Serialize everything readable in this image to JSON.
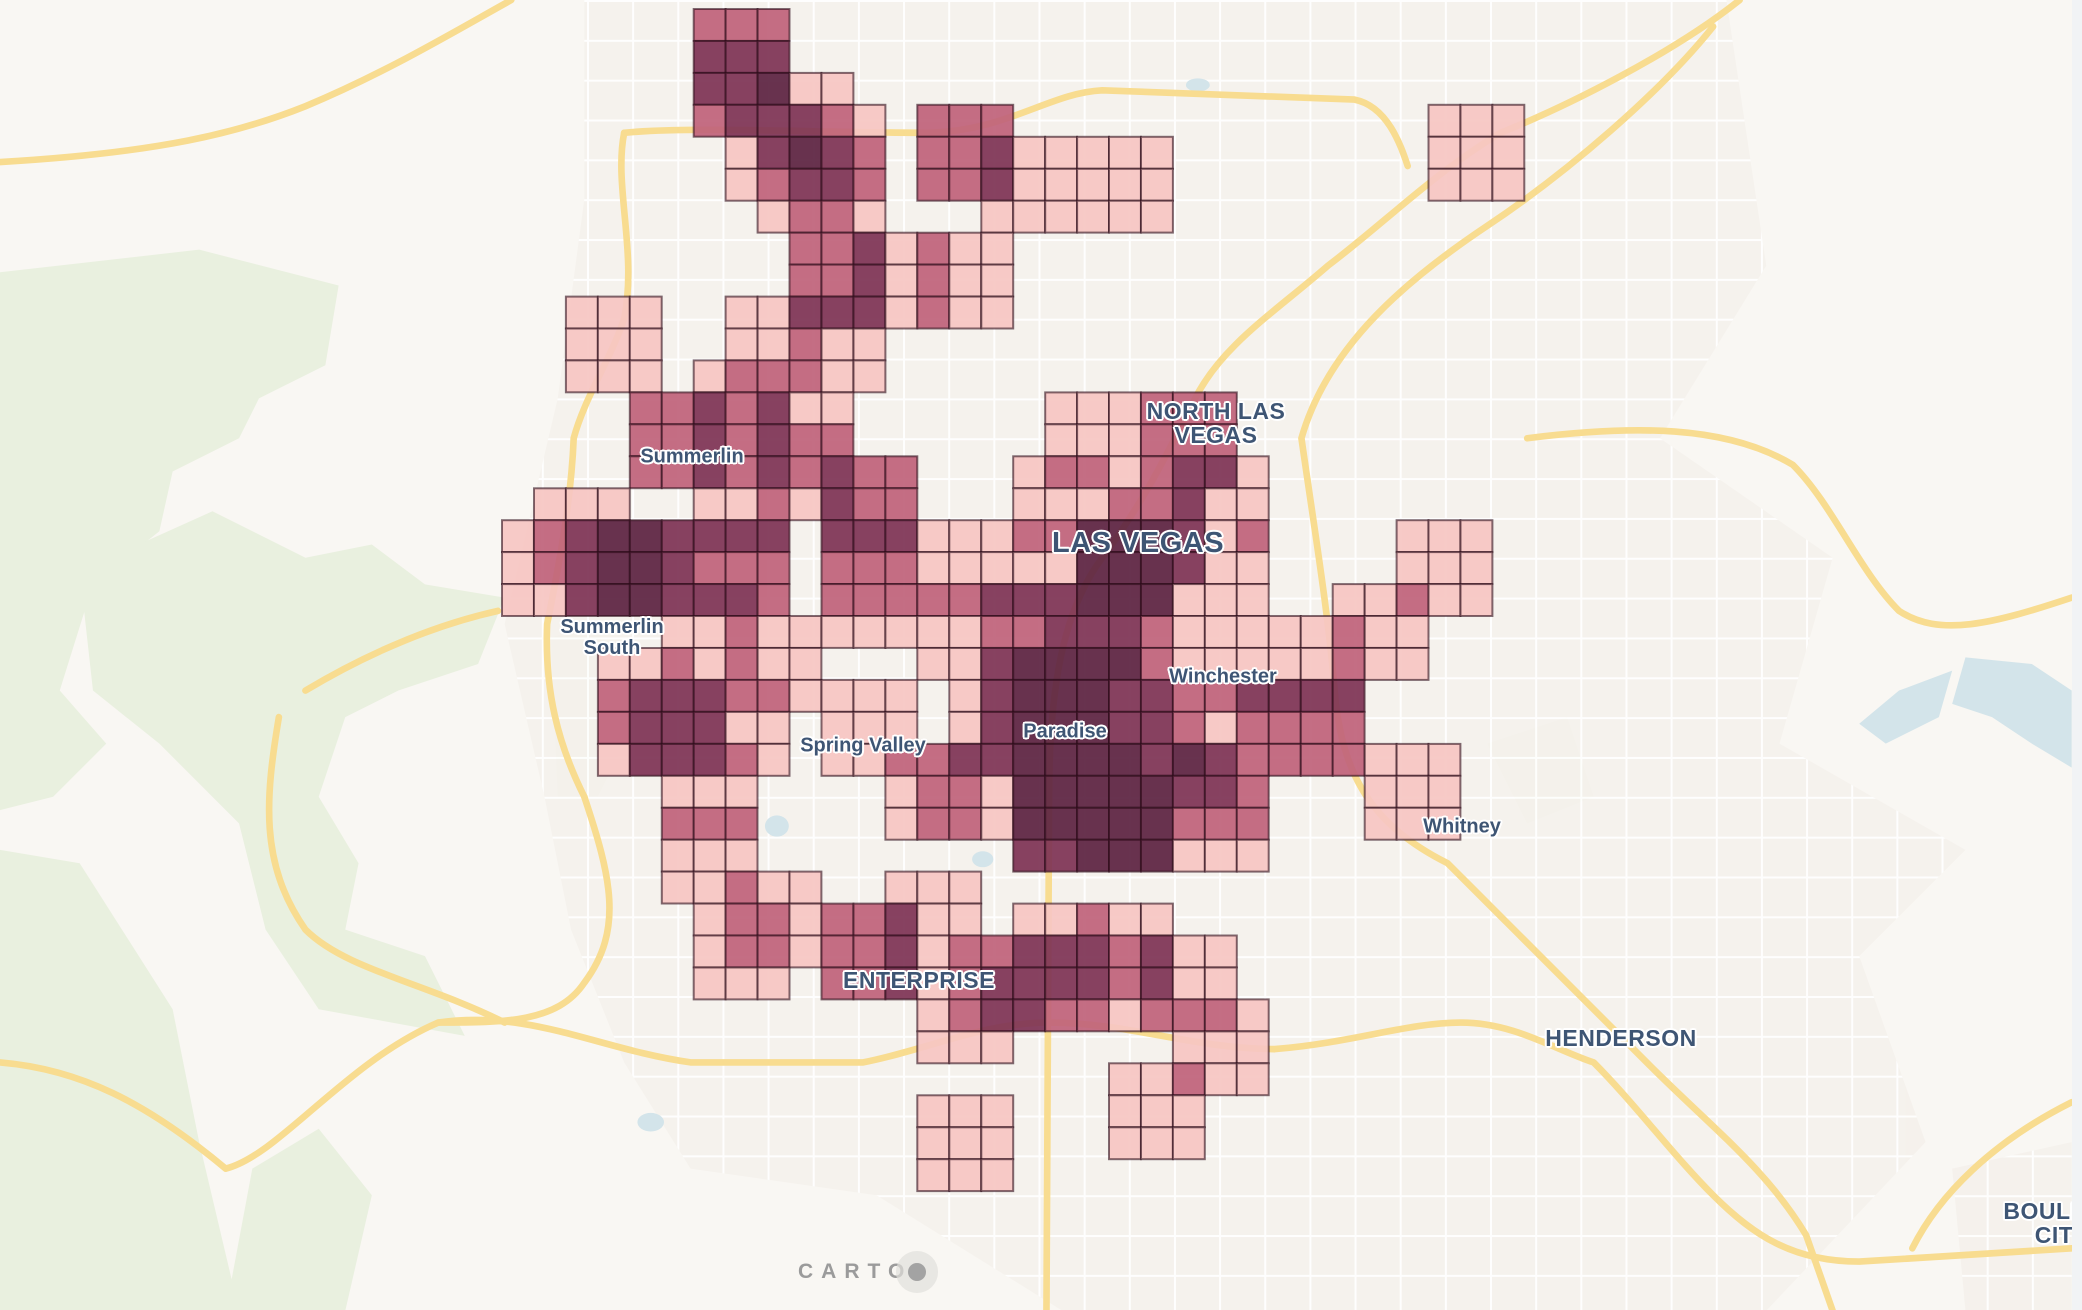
{
  "map": {
    "attribution": "CARTO",
    "labels": {
      "summerlin": "Summerlin",
      "north_las_vegas_1": "NORTH LAS",
      "north_las_vegas_2": "VEGAS",
      "las_vegas": "LAS VEGAS",
      "summerlin_south_1": "Summerlin",
      "summerlin_south_2": "South",
      "winchester": "Winchester",
      "paradise": "Paradise",
      "spring_valley": "Spring Valley",
      "whitney": "Whitney",
      "enterprise": "ENTERPRISE",
      "henderson": "HENDERSON",
      "boulder_city_1": "BOULDER",
      "boulder_city_2": "CITY"
    },
    "colors": {
      "land": "#f9f7f3",
      "park": "#e9f0df",
      "water": "#d3e4ea",
      "major_road": "#f8dc90",
      "label": "#3e5574"
    }
  },
  "density_grid": {
    "legend_levels": 4,
    "colors": {
      "1": "#f6c6c3",
      "2": "#c0637b",
      "3": "#7e3455",
      "4": "#5c2442"
    },
    "rows": [
      "00000022200000000000000000000000",
      "00000033300000000000000000000000",
      "00000033411000000000000000000000",
      "00000023332102220000000000000111",
      "00000001343202231111100000000111",
      "00000001233202231111100000000111",
      "00000000122100011111100000000000",
      "00000000022312110000000000000000",
      "00000000022312110000000000000000",
      "00111001133312110000000000000000",
      "00111001121100000000000000000000",
      "00111012221100000000000000000000",
      "00002232311000000111222000000000",
      "00002232322000000111222000000000",
      "00002232323220001221233100000000",
      "01110011213220001112231100000000",
      "12344333303331112244431200001110",
      "12344322202221111144431100001110",
      "11344333202222233344411100112110",
      "00000112111111122333211111211000",
      "00011212110001134444211111211000",
      "00023332211110134443322333300000",
      "00023331101110134443321222200000",
      "00013332101122334444343222211100",
      "00000111000012214444433200011100",
      "00000222000012214444422200011100",
      "00000111000000003344411100000000",
      "00000112110011100000000000000000",
      "00000012212231101121100000000000",
      "00000012212231223332311000000000",
      "00000011102231233332311000000000",
      "00000000000001233221222100000000",
      "00000000000001110000011100000000",
      "00000000000000000001121100000000",
      "00000000000001110001110000000000",
      "00000000000001110001110000000000",
      "00000000000001110000000000000000"
    ]
  }
}
